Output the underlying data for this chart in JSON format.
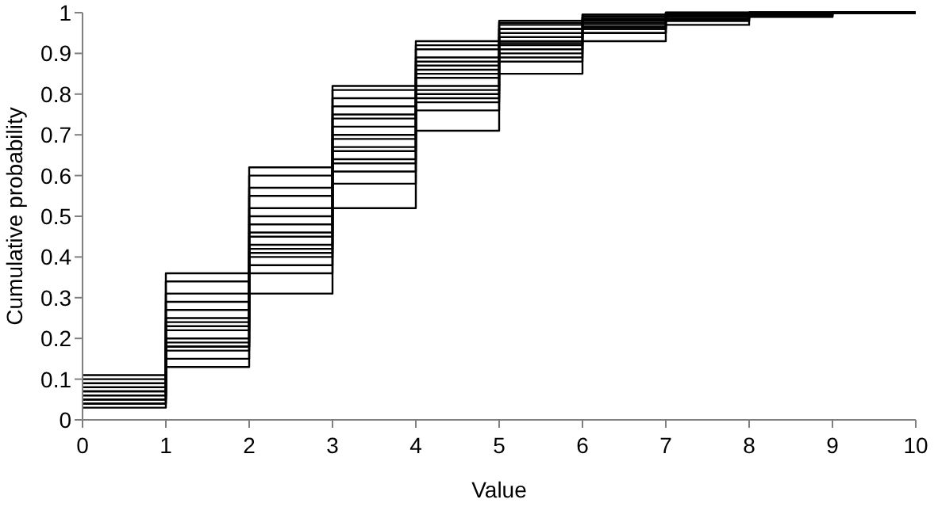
{
  "chart_data": {
    "type": "step",
    "xlabel": "Value",
    "ylabel": "Cumulative probability",
    "x": [
      0,
      1,
      2,
      3,
      4,
      5,
      6,
      7,
      8,
      9,
      10
    ],
    "xlim": [
      0,
      10
    ],
    "xticks": [
      0,
      1,
      2,
      3,
      4,
      5,
      6,
      7,
      8,
      9,
      10
    ],
    "ylim": [
      0,
      1
    ],
    "yticks": [
      0,
      0.1,
      0.2,
      0.3,
      0.4,
      0.5,
      0.6,
      0.7,
      0.8,
      0.9,
      1
    ],
    "grid": false,
    "marker": "none",
    "line_style": "solid",
    "series": [
      {
        "color": "#000000",
        "values": [
          0.03,
          0.13,
          0.31,
          0.52,
          0.71,
          0.85,
          0.93,
          0.97,
          0.99,
          1,
          1
        ]
      },
      {
        "color": "#000000",
        "values": [
          0.04,
          0.15,
          0.36,
          0.58,
          0.76,
          0.88,
          0.95,
          0.98,
          0.99,
          1,
          1
        ]
      },
      {
        "color": "#000000",
        "values": [
          0.04,
          0.17,
          0.38,
          0.61,
          0.78,
          0.89,
          0.95,
          0.98,
          0.99,
          1,
          1
        ]
      },
      {
        "color": "#000000",
        "values": [
          0.05,
          0.18,
          0.4,
          0.63,
          0.79,
          0.9,
          0.96,
          0.985,
          0.995,
          1,
          1
        ]
      },
      {
        "color": "#000000",
        "values": [
          0.05,
          0.18,
          0.41,
          0.64,
          0.8,
          0.91,
          0.96,
          0.985,
          0.995,
          1,
          1
        ]
      },
      {
        "color": "#000000",
        "values": [
          0.05,
          0.19,
          0.42,
          0.66,
          0.81,
          0.92,
          0.965,
          0.99,
          0.995,
          1,
          1
        ]
      },
      {
        "color": "#000000",
        "values": [
          0.06,
          0.2,
          0.43,
          0.67,
          0.82,
          0.925,
          0.97,
          0.99,
          0.995,
          1,
          1
        ]
      },
      {
        "color": "#000000",
        "values": [
          0.06,
          0.22,
          0.45,
          0.69,
          0.84,
          0.93,
          0.975,
          0.99,
          1,
          1,
          1
        ]
      },
      {
        "color": "#000000",
        "values": [
          0.06,
          0.23,
          0.46,
          0.7,
          0.85,
          0.94,
          0.98,
          0.99,
          1,
          1,
          1
        ]
      },
      {
        "color": "#000000",
        "values": [
          0.07,
          0.24,
          0.48,
          0.72,
          0.86,
          0.94,
          0.98,
          0.995,
          1,
          1,
          1
        ]
      },
      {
        "color": "#000000",
        "values": [
          0.07,
          0.25,
          0.5,
          0.74,
          0.87,
          0.95,
          0.985,
          0.995,
          1,
          1,
          1
        ]
      },
      {
        "color": "#000000",
        "values": [
          0.08,
          0.27,
          0.52,
          0.75,
          0.88,
          0.96,
          0.985,
          0.995,
          1,
          1,
          1
        ]
      },
      {
        "color": "#000000",
        "values": [
          0.08,
          0.29,
          0.55,
          0.77,
          0.89,
          0.96,
          0.99,
          0.995,
          1,
          1,
          1
        ]
      },
      {
        "color": "#000000",
        "values": [
          0.09,
          0.31,
          0.57,
          0.79,
          0.91,
          0.97,
          0.99,
          1,
          1,
          1,
          1
        ]
      },
      {
        "color": "#000000",
        "values": [
          0.1,
          0.34,
          0.6,
          0.81,
          0.92,
          0.975,
          0.995,
          1,
          1,
          1,
          1
        ]
      },
      {
        "color": "#000000",
        "values": [
          0.11,
          0.36,
          0.62,
          0.82,
          0.93,
          0.98,
          0.995,
          1,
          1,
          1,
          1
        ]
      }
    ]
  }
}
